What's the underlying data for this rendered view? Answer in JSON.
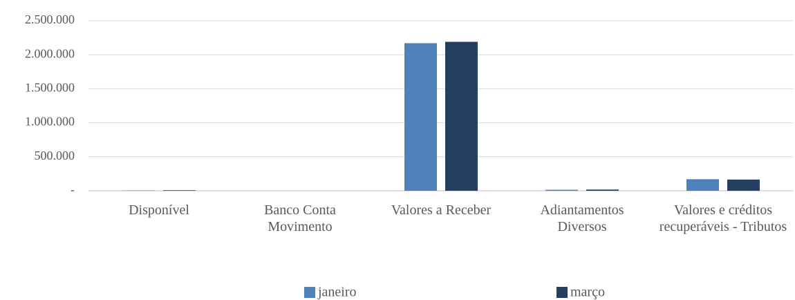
{
  "chart_data": {
    "type": "bar",
    "categories": [
      "Disponível",
      "Banco Conta Movimento",
      "Valores a Receber",
      "Adiantamentos Diversos",
      "Valores e créditos recuperáveis - Tributos"
    ],
    "series": [
      {
        "name": "janeiro",
        "color": "#4f81bd",
        "values": [
          5000,
          0,
          2170000,
          15000,
          170000
        ]
      },
      {
        "name": "março",
        "color": "#243f60",
        "values": [
          8000,
          0,
          2190000,
          18000,
          165000
        ]
      }
    ],
    "ylim": [
      0,
      2500000
    ],
    "yticks": [
      {
        "value": 0,
        "label": "-"
      },
      {
        "value": 500000,
        "label": "500.000"
      },
      {
        "value": 1000000,
        "label": "1.000.000"
      },
      {
        "value": 1500000,
        "label": "1.500.000"
      },
      {
        "value": 2000000,
        "label": "2.000.000"
      },
      {
        "value": 2500000,
        "label": "2.500.000"
      }
    ],
    "grid": true,
    "legend": "bottom"
  }
}
